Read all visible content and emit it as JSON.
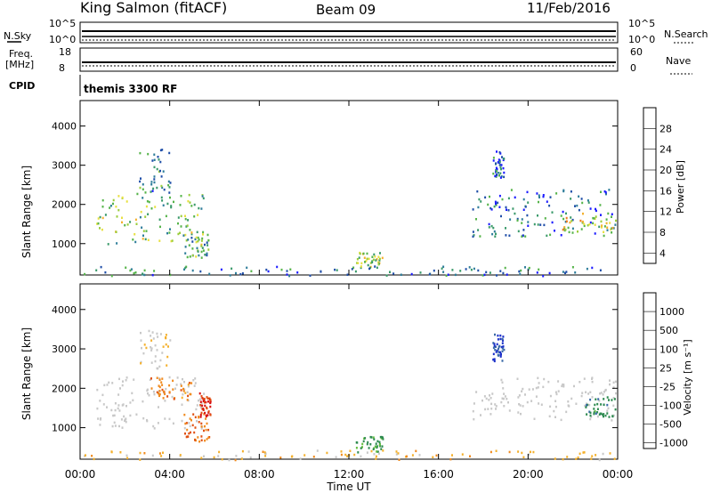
{
  "header": {
    "station": "King Salmon (fitACF)",
    "beam": "Beam 09",
    "date": "11/Feb/2016"
  },
  "top_panels": {
    "nsky_label": "N.Sky",
    "nsky_ticks": [
      "10^5",
      "10^0"
    ],
    "nsearch_label": "N.Search",
    "nsearch_ticks": [
      "10^5",
      "10^0"
    ],
    "freq_label_line1": "Freq.",
    "freq_label_line2": "[MHz]",
    "freq_ticks": [
      "18",
      "8"
    ],
    "nave_label": "Nave",
    "nave_ticks": [
      "60",
      "0"
    ],
    "cpid_label": "CPID",
    "cpid_text": "themis 3300 RF"
  },
  "chart_data": [
    {
      "type": "heatmap",
      "name": "power-panel",
      "ylabel": "Slant Range [km]",
      "yticks": [
        "4000",
        "3000",
        "2000",
        "1000"
      ],
      "ylim": [
        200,
        4650
      ],
      "xlim_hours": [
        0,
        24
      ],
      "colorbar_label": "Power [dB]",
      "colorbar_ticks": [
        "28",
        "24",
        "20",
        "16",
        "12",
        "8",
        "4"
      ],
      "colors": [
        "#1a1aff",
        "#1f4ea8",
        "#2e7d9a",
        "#3a9a6a",
        "#56b44a",
        "#9bcd3c",
        "#e8e040",
        "#f4b02c",
        "#f07a1e",
        "#e0401a",
        "#d01010"
      ],
      "regions": [
        {
          "t": [
            0.7,
            5.5
          ],
          "r": [
            1000,
            2300
          ],
          "level": 0.45
        },
        {
          "t": [
            2.6,
            4.0
          ],
          "r": [
            2300,
            3500
          ],
          "level": 0.25
        },
        {
          "t": [
            4.5,
            5.7
          ],
          "r": [
            650,
            1300
          ],
          "level": 0.35
        },
        {
          "t": [
            17.5,
            23.9
          ],
          "r": [
            1200,
            2400
          ],
          "level": 0.2
        },
        {
          "t": [
            21.5,
            23.9
          ],
          "r": [
            1300,
            1800
          ],
          "level": 0.55
        },
        {
          "t": [
            18.4,
            18.9
          ],
          "r": [
            2700,
            3400
          ],
          "level": 0.15
        },
        {
          "t": [
            12.3,
            13.5
          ],
          "r": [
            400,
            800
          ],
          "level": 0.5
        },
        {
          "t": [
            0,
            24
          ],
          "r": [
            200,
            450
          ],
          "level": 0.2
        }
      ]
    },
    {
      "type": "heatmap",
      "name": "velocity-panel",
      "ylabel": "Slant Range [km]",
      "yticks": [
        "4000",
        "3000",
        "2000",
        "1000"
      ],
      "ylim": [
        200,
        4650
      ],
      "xlim_hours": [
        0,
        24
      ],
      "colorbar_label": "Velocity [m s⁻¹]",
      "colorbar_ticks": [
        "1000",
        "500",
        "100",
        "25",
        "-25",
        "-100",
        "-500",
        "-1000"
      ],
      "colors": [
        "#1a2fc8",
        "#3a6aa8",
        "#2e8a50",
        "#66c040",
        "#c8c8c8",
        "#c8c8c8",
        "#f4b02c",
        "#f08a1e",
        "#e05010",
        "#d81010"
      ],
      "regions": [
        {
          "t": [
            0.7,
            5.5
          ],
          "r": [
            1000,
            2300
          ],
          "vel": 0.0
        },
        {
          "t": [
            3.1,
            5.0
          ],
          "r": [
            1700,
            2300
          ],
          "vel": -0.6
        },
        {
          "t": [
            4.6,
            5.8
          ],
          "r": [
            650,
            1400
          ],
          "vel": -0.7
        },
        {
          "t": [
            5.3,
            5.8
          ],
          "r": [
            1300,
            1900
          ],
          "vel": -0.9
        },
        {
          "t": [
            2.6,
            4.0
          ],
          "r": [
            2300,
            3500
          ],
          "vel": -0.2
        },
        {
          "t": [
            17.5,
            23.9
          ],
          "r": [
            1200,
            2300
          ],
          "vel": 0.0
        },
        {
          "t": [
            22.5,
            23.9
          ],
          "r": [
            1300,
            1800
          ],
          "vel": 0.6
        },
        {
          "t": [
            18.4,
            18.9
          ],
          "r": [
            2700,
            3400
          ],
          "vel": 0.9
        },
        {
          "t": [
            12.3,
            13.5
          ],
          "r": [
            400,
            800
          ],
          "vel": 0.5
        },
        {
          "t": [
            0,
            24
          ],
          "r": [
            200,
            450
          ],
          "vel": -0.3
        }
      ]
    }
  ],
  "x_axis": {
    "ticks": [
      "00:00",
      "04:00",
      "08:00",
      "12:00",
      "16:00",
      "20:00",
      "00:00"
    ],
    "tick_hours": [
      0,
      4,
      8,
      12,
      16,
      20,
      24
    ],
    "label": "Time UT"
  }
}
